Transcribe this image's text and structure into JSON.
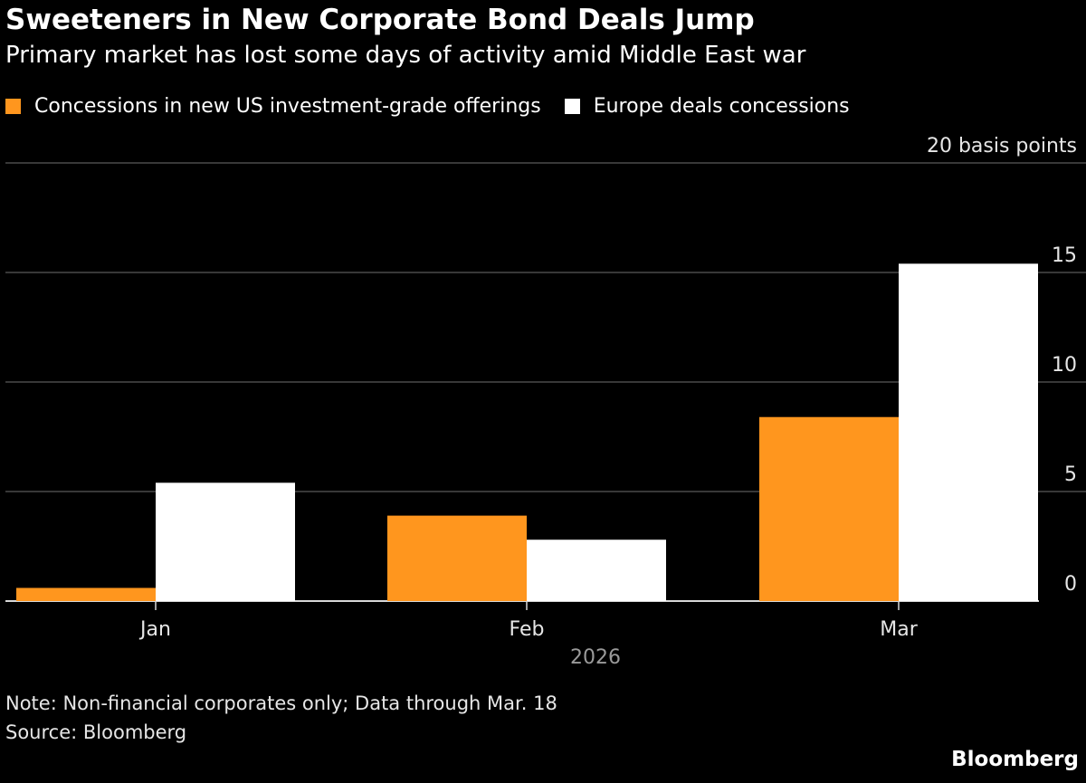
{
  "title": "Sweeteners in New Corporate Bond Deals Jump",
  "subtitle": "Primary market has lost some days of activity amid Middle East war",
  "colors": {
    "background": "#000000",
    "us_series": "#FF961E",
    "europe_series": "#FFFFFF",
    "gridline": "#4A4A4A",
    "axis_text": "#E6E6E6",
    "year_label": "#9A9A9A"
  },
  "chart_data": {
    "type": "bar",
    "categories": [
      "Jan",
      "Feb",
      "Mar"
    ],
    "x_group_label": "2026",
    "series": [
      {
        "name": "Concessions in new US investment-grade offerings",
        "color": "#FF961E",
        "values": [
          0.6,
          3.9,
          8.4
        ]
      },
      {
        "name": "Europe deals concessions",
        "color": "#FFFFFF",
        "values": [
          5.4,
          2.8,
          15.4
        ]
      }
    ],
    "ylabel": "basis points",
    "ylim": [
      0,
      20
    ],
    "yticks": [
      0,
      5,
      10,
      15,
      20
    ],
    "top_tick_label": "20 basis points",
    "grid": true,
    "y_axis_position": "right",
    "legend": "top-left"
  },
  "note": "Note: Non-financial corporates only; Data through Mar. 18",
  "source": "Source: Bloomberg",
  "brand": "Bloomberg"
}
